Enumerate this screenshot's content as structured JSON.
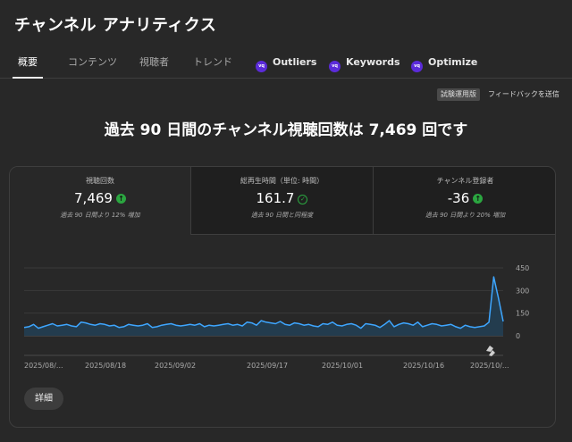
{
  "page": {
    "title": "チャンネル アナリティクス"
  },
  "tabs": [
    {
      "label": "概要",
      "active": true
    },
    {
      "label": "コンテンツ"
    },
    {
      "label": "視聴者"
    },
    {
      "label": "トレンド"
    },
    {
      "label": "Outliers",
      "icon": "vidiq-logo-icon"
    },
    {
      "label": "Keywords",
      "icon": "vidiq-logo-icon"
    },
    {
      "label": "Optimize",
      "icon": "vidiq-logo-icon"
    }
  ],
  "top_actions": {
    "beta_badge": "試験運用版",
    "feedback": "フィードバックを送信"
  },
  "headline": "過去 90 日間のチャンネル視聴回数は 7,469 回です",
  "metrics": [
    {
      "label": "視聴回数",
      "value": "7,469",
      "status": "up",
      "note": "過去 90 日間より 12% 増加"
    },
    {
      "label": "総再生時間（単位: 時間）",
      "value": "161.7",
      "status": "same",
      "note": "過去 90 日間と同程度"
    },
    {
      "label": "チャンネル登録者",
      "value": "-36",
      "status": "up",
      "note": "過去 90 日間より 20% 増加"
    }
  ],
  "chart_data": {
    "type": "area",
    "title": "",
    "ylim": [
      0,
      450
    ],
    "yticks": [
      0,
      150,
      300,
      450
    ],
    "ytick_labels": [
      "0",
      "150",
      "300",
      "450"
    ],
    "xtick_labels": [
      "2025/08/...",
      "2025/08/18",
      "2025/09/02",
      "2025/09/17",
      "2025/10/01",
      "2025/10/16",
      "2025/10/..."
    ],
    "grid": true,
    "colors": {
      "line": "#3ea6ff",
      "fill": "#233c4e"
    },
    "series": [
      {
        "values": [
          55,
          60,
          75,
          50,
          60,
          70,
          80,
          65,
          70,
          75,
          65,
          60,
          90,
          85,
          75,
          70,
          80,
          75,
          65,
          70,
          55,
          60,
          75,
          70,
          65,
          70,
          80,
          55,
          60,
          70,
          75,
          80,
          70,
          65,
          70,
          75,
          70,
          80,
          60,
          70,
          65,
          70,
          75,
          80,
          70,
          75,
          65,
          90,
          85,
          70,
          100,
          90,
          85,
          80,
          95,
          75,
          70,
          85,
          80,
          70,
          75,
          65,
          60,
          80,
          75,
          90,
          70,
          65,
          75,
          80,
          70,
          50,
          80,
          75,
          70,
          55,
          75,
          100,
          60,
          75,
          85,
          80,
          70,
          90,
          60,
          70,
          80,
          75,
          65,
          70,
          75,
          60,
          50,
          70,
          60,
          55,
          60,
          65,
          90,
          390,
          250,
          95
        ]
      }
    ]
  },
  "buttons": {
    "details": "詳細"
  }
}
